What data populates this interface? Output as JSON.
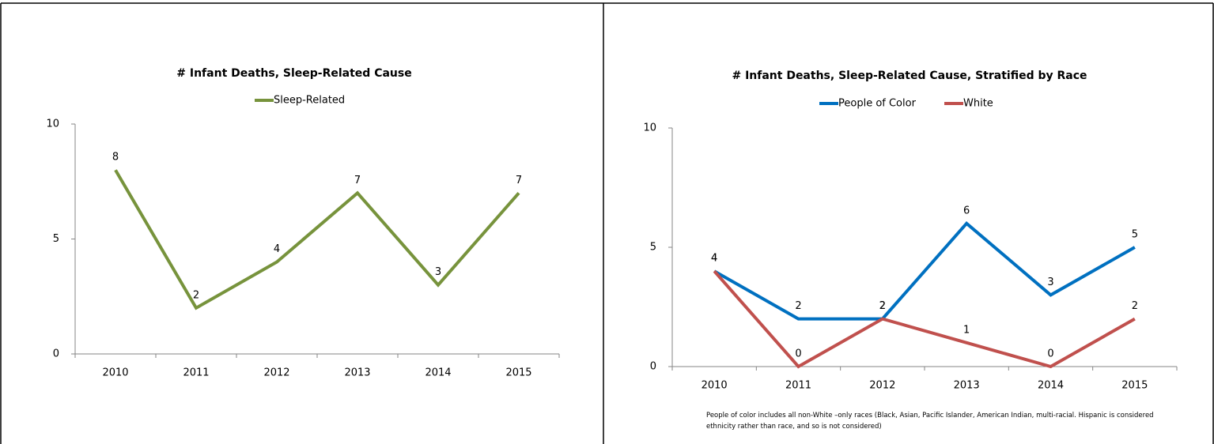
{
  "chart_data": [
    {
      "type": "line",
      "title": "# Infant Deaths, Sleep-Related Cause",
      "categories": [
        "2010",
        "2011",
        "2012",
        "2013",
        "2014",
        "2015"
      ],
      "series": [
        {
          "name": "Sleep-Related",
          "color": "#77933c",
          "values": [
            8,
            2,
            4,
            7,
            3,
            7
          ]
        }
      ],
      "ylim": [
        0,
        10
      ],
      "yticks": [
        0,
        5,
        10
      ],
      "legend": "top"
    },
    {
      "type": "line",
      "title": "# Infant Deaths, Sleep-Related Cause, Stratified by Race",
      "categories": [
        "2010",
        "2011",
        "2012",
        "2013",
        "2014",
        "2015"
      ],
      "series": [
        {
          "name": "People of Color",
          "color": "#0070c0",
          "values": [
            4,
            2,
            2,
            6,
            3,
            5
          ]
        },
        {
          "name": "White",
          "color": "#c0504d",
          "values": [
            4,
            0,
            2,
            1,
            0,
            2
          ]
        }
      ],
      "ylim": [
        0,
        10
      ],
      "yticks": [
        0,
        5,
        10
      ],
      "legend": "top",
      "note": "People of color includes all non-White –only races (Black, Asian, Pacific Islander, American Indian, multi-racial. Hispanic is considered ethnicity rather than race, and so is not considered)"
    }
  ]
}
